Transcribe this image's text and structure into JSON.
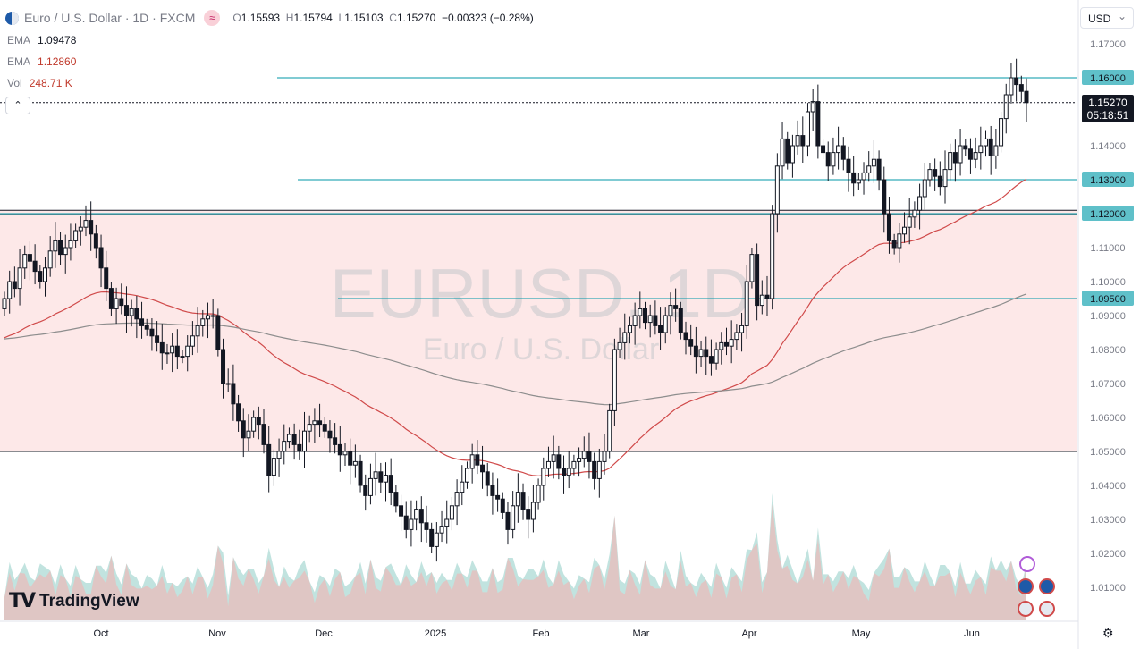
{
  "header": {
    "symbol": "Euro / U.S. Dollar · 1D · FXCM",
    "open_label": "O",
    "open": "1.15593",
    "high_label": "H",
    "high": "1.15794",
    "low_label": "L",
    "low": "1.15103",
    "close_label": "C",
    "close": "1.15270",
    "change": "−0.00323 (−0.28%)"
  },
  "indicators": [
    {
      "name": "EMA",
      "value": "1.09478",
      "color": "#787b86"
    },
    {
      "name": "EMA",
      "value": "1.12860",
      "color": "#d04a4a"
    },
    {
      "name": "Vol",
      "value": "248.71 K",
      "color": "#c0392b"
    }
  ],
  "currency": "USD",
  "current_price": {
    "price": "1.15270",
    "countdown": "05:18:51"
  },
  "watermark": {
    "symbol": "EURUSD, 1D",
    "description": "Euro / U.S. Dollar"
  },
  "brand": "TradingView",
  "colors": {
    "up": "#131722",
    "down": "#131722",
    "level": "#0097a7",
    "zone": "#fde8e8",
    "ema_fast": "#d04a4a",
    "ema_slow": "#8d8d8d",
    "vol_up": "#a7d7d2",
    "vol_down": "#f4b3b3"
  },
  "chart_data": {
    "type": "candlestick",
    "title": "Euro / U.S. Dollar · 1D · FXCM",
    "x_axis_labels": [
      "Oct",
      "Nov",
      "Dec",
      "2025",
      "Feb",
      "Mar",
      "Apr",
      "May",
      "Jun"
    ],
    "y_axis_labels": [
      "1.17000",
      "1.16000",
      "1.15270",
      "1.14000",
      "1.13000",
      "1.12000",
      "1.11000",
      "1.10000",
      "1.09500",
      "1.09000",
      "1.08000",
      "1.07000",
      "1.06000",
      "1.05000",
      "1.04000",
      "1.03000",
      "1.02000",
      "1.01000"
    ],
    "ylim": [
      1.0,
      1.175
    ],
    "horizontal_levels": [
      1.16,
      1.13,
      1.12,
      1.095
    ],
    "support_resistance_zone": [
      1.05,
      1.121
    ],
    "closes": [
      1.095,
      1.1,
      1.098,
      1.104,
      1.108,
      1.106,
      1.103,
      1.1,
      1.104,
      1.109,
      1.112,
      1.108,
      1.11,
      1.112,
      1.115,
      1.116,
      1.118,
      1.114,
      1.11,
      1.104,
      1.098,
      1.092,
      1.095,
      1.093,
      1.09,
      1.092,
      1.089,
      1.087,
      1.086,
      1.084,
      1.082,
      1.079,
      1.079,
      1.081,
      1.078,
      1.078,
      1.081,
      1.084,
      1.087,
      1.089,
      1.09,
      1.09,
      1.08,
      1.07,
      1.07,
      1.064,
      1.059,
      1.054,
      1.056,
      1.06,
      1.058,
      1.052,
      1.043,
      1.048,
      1.05,
      1.053,
      1.055,
      1.052,
      1.05,
      1.056,
      1.058,
      1.059,
      1.058,
      1.056,
      1.054,
      1.052,
      1.049,
      1.05,
      1.046,
      1.047,
      1.04,
      1.037,
      1.042,
      1.044,
      1.041,
      1.043,
      1.038,
      1.034,
      1.031,
      1.027,
      1.03,
      1.033,
      1.029,
      1.027,
      1.022,
      1.026,
      1.028,
      1.03,
      1.034,
      1.038,
      1.041,
      1.045,
      1.049,
      1.046,
      1.044,
      1.04,
      1.037,
      1.036,
      1.032,
      1.027,
      1.034,
      1.038,
      1.033,
      1.03,
      1.035,
      1.04,
      1.045,
      1.047,
      1.049,
      1.045,
      1.043,
      1.045,
      1.047,
      1.048,
      1.05,
      1.047,
      1.042,
      1.047,
      1.05,
      1.062,
      1.08,
      1.082,
      1.085,
      1.087,
      1.09,
      1.092,
      1.088,
      1.09,
      1.087,
      1.085,
      1.09,
      1.093,
      1.092,
      1.085,
      1.083,
      1.081,
      1.078,
      1.08,
      1.078,
      1.076,
      1.08,
      1.082,
      1.081,
      1.083,
      1.085,
      1.087,
      1.1,
      1.108,
      1.093,
      1.096,
      1.095,
      1.12,
      1.134,
      1.142,
      1.135,
      1.14,
      1.143,
      1.14,
      1.15,
      1.153,
      1.14,
      1.138,
      1.134,
      1.138,
      1.14,
      1.136,
      1.132,
      1.129,
      1.13,
      1.132,
      1.134,
      1.136,
      1.13,
      1.12,
      1.112,
      1.11,
      1.114,
      1.116,
      1.119,
      1.121,
      1.125,
      1.13,
      1.133,
      1.131,
      1.128,
      1.133,
      1.138,
      1.135,
      1.14,
      1.139,
      1.136,
      1.138,
      1.14,
      1.142,
      1.137,
      1.14,
      1.148,
      1.155,
      1.16,
      1.158,
      1.156,
      1.1527
    ],
    "volume_relative": "shown as shaded area at bottom",
    "series": [
      {
        "name": "EMA",
        "value_last": "1.09478"
      },
      {
        "name": "EMA",
        "value_last": "1.12860"
      }
    ]
  }
}
